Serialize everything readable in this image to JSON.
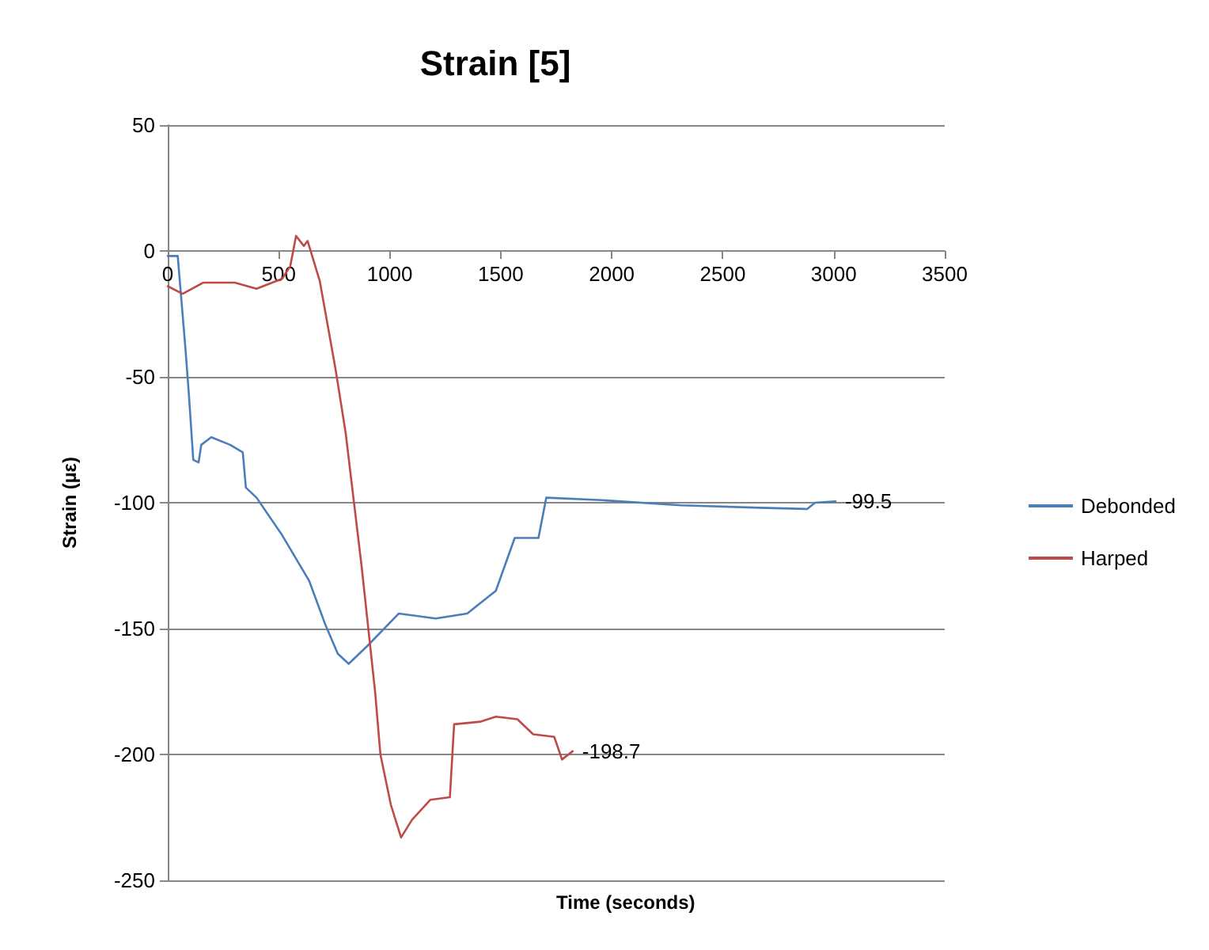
{
  "chart_data": {
    "type": "line",
    "title": "Strain [5]",
    "xlabel": "Time (seconds)",
    "ylabel": "Strain (µε)",
    "xlim": [
      0,
      3500
    ],
    "xticks": [
      0,
      500,
      1000,
      1500,
      2000,
      2500,
      3000,
      3500
    ],
    "ylim": [
      -250,
      50
    ],
    "yticks": [
      -250,
      -200,
      -150,
      -100,
      -50,
      0,
      50
    ],
    "grid": "y",
    "legend": "right",
    "marker": "none",
    "line_style": "solid",
    "annotations": [
      {
        "text": "-99.5",
        "x": 3008,
        "y": -99.5
      },
      {
        "text": "-198.7",
        "x": 1824,
        "y": -198.7
      }
    ],
    "series": [
      {
        "name": "Debonded",
        "color": "#4a7ebb",
        "x": [
          0,
          45,
          80,
          96,
          115,
          139,
          151,
          196,
          281,
          338,
          352,
          400,
          516,
          637,
          708,
          766,
          815,
          898,
          1041,
          1207,
          1349,
          1478,
          1563,
          1670,
          1705,
          1955,
          2311,
          2667,
          2880,
          2916,
          3008
        ],
        "values": [
          -2,
          -2,
          -39,
          -58,
          -83,
          -84,
          -77,
          -74,
          -77,
          -80,
          -94,
          -98,
          -113,
          -131,
          -148,
          -160,
          -164,
          -157,
          -144,
          -146,
          -144,
          -135,
          -114,
          -114,
          -98,
          -99,
          -101,
          -102,
          -102.5,
          -100,
          -99.5
        ]
      },
      {
        "name": "Harped",
        "color": "#be4b48",
        "x": [
          0,
          67,
          160,
          302,
          400,
          516,
          552,
          578,
          613,
          630,
          685,
          756,
          801,
          873,
          934,
          958,
          1005,
          1051,
          1100,
          1183,
          1271,
          1290,
          1407,
          1478,
          1575,
          1646,
          1741,
          1776,
          1824
        ],
        "values": [
          -14,
          -17,
          -12.6,
          -12.6,
          -15,
          -11,
          -6,
          6,
          2,
          4,
          -12,
          -47,
          -72,
          -125,
          -175,
          -200,
          -220,
          -233,
          -226,
          -218,
          -217,
          -188,
          -187,
          -185,
          -186,
          -192,
          -193,
          -202,
          -198.7
        ]
      }
    ]
  }
}
